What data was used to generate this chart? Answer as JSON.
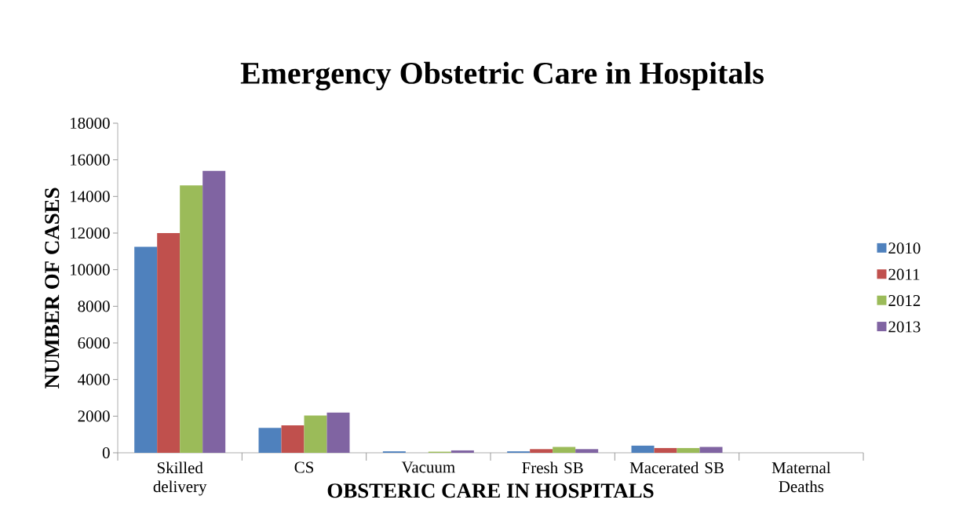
{
  "chart_data": {
    "type": "bar",
    "title": "Emergency Obstetric Care in Hospitals",
    "xlabel": "OBSTERIC CARE IN HOSPITALS",
    "ylabel": "NUMBER OF CASES",
    "categories": [
      "Skilled delivery",
      "CS",
      "Vacuum",
      "Fresh SB",
      "Macerated SB",
      "Maternal Deaths"
    ],
    "series": [
      {
        "name": "2010",
        "color": "#4f81bd",
        "values": [
          11250,
          1360,
          80,
          80,
          390,
          0
        ]
      },
      {
        "name": "2011",
        "color": "#c0504d",
        "values": [
          12000,
          1500,
          0,
          200,
          260,
          0
        ]
      },
      {
        "name": "2012",
        "color": "#9bbb59",
        "values": [
          14600,
          2040,
          60,
          320,
          260,
          0
        ]
      },
      {
        "name": "2013",
        "color": "#8064a2",
        "values": [
          15400,
          2200,
          130,
          200,
          320,
          0
        ]
      }
    ],
    "ylim": [
      0,
      18000
    ],
    "yticks": [
      0,
      2000,
      4000,
      6000,
      8000,
      10000,
      12000,
      14000,
      16000,
      18000
    ],
    "legend": "right",
    "grid": false
  }
}
